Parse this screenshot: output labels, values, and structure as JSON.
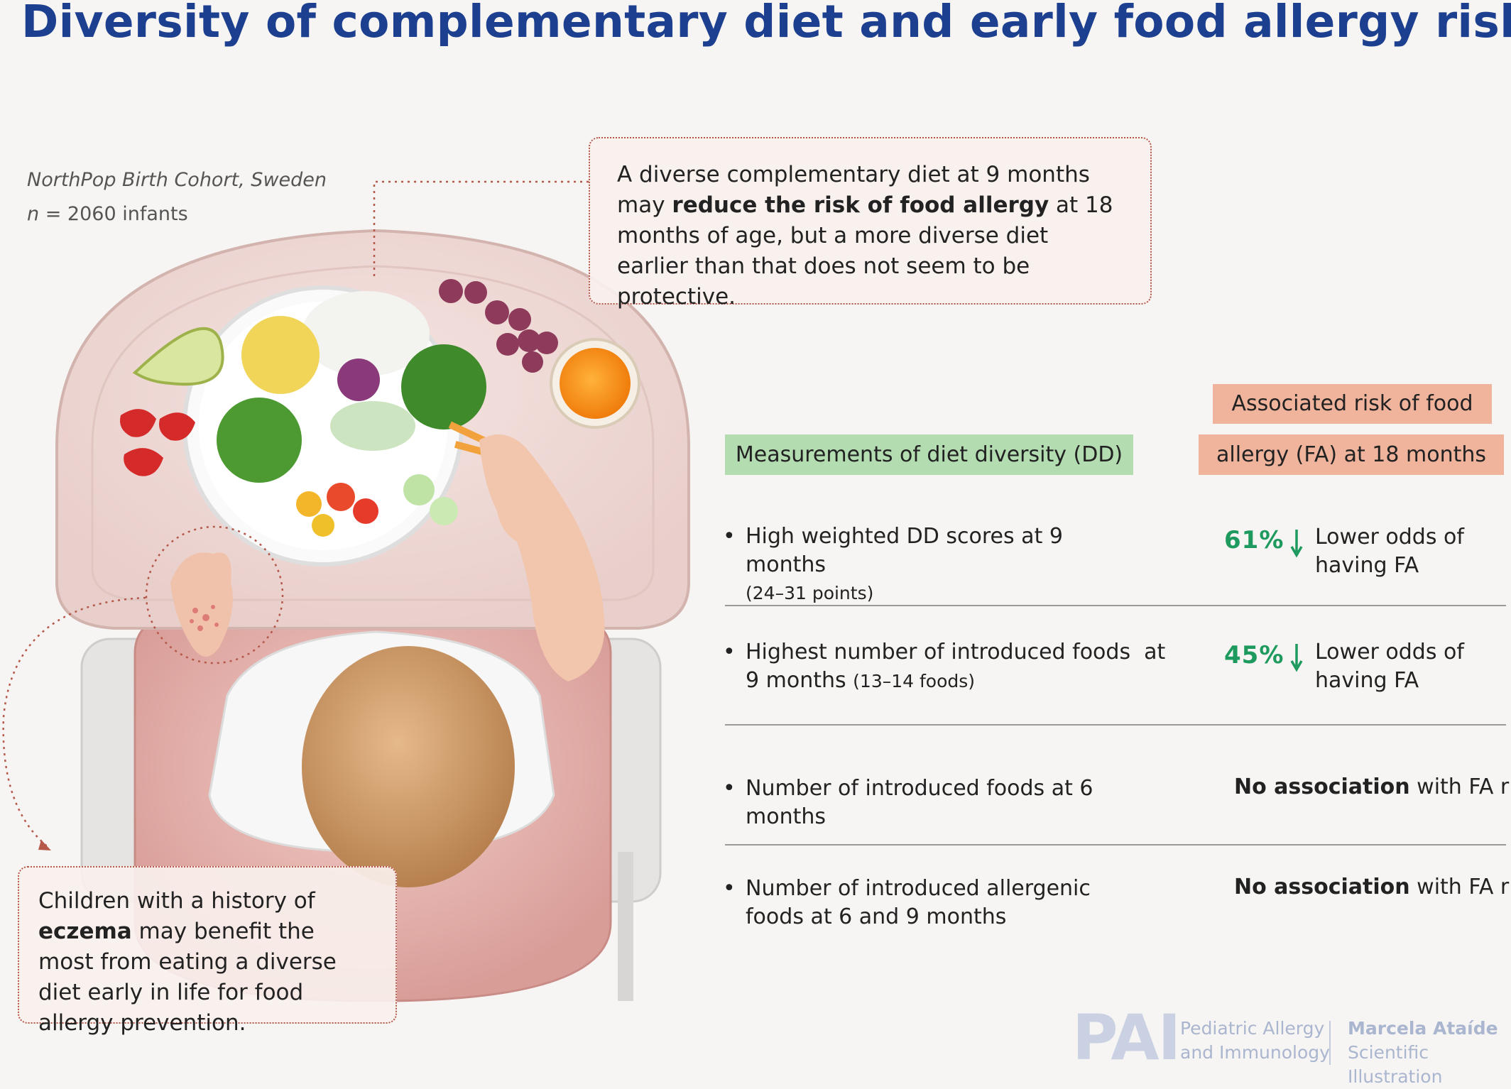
{
  "title": "Diversity of complementary diet and early food allergy risk",
  "cohort": {
    "line1": "NorthPop Birth Cohort, Sweden",
    "n_italic": "n",
    "n_rest": " = 2060 infants"
  },
  "top_box": {
    "part1": "A diverse complementary diet at 9 months may ",
    "bold": "reduce the risk of food allergy",
    "part2": " at 18 months of age, but a more diverse diet earlier than that does not seem to be protective."
  },
  "bottom_box": {
    "part1": "Children with a history of ",
    "bold": "eczema",
    "part2": " may benefit the most from eating a diverse diet early in life for food allergy prevention."
  },
  "headers": {
    "measurements": "Measurements of diet diversity (DD)",
    "risk_line1": "Associated risk of food",
    "risk_line2": "allergy (FA) at 18 months"
  },
  "rows": [
    {
      "bullet": "•",
      "text": "High weighted DD scores at 9 months",
      "small": "(24–31 points)",
      "pct": "61%",
      "odds": "Lower odds of having FA"
    },
    {
      "bullet": "•",
      "text_line1": "Highest number of introduced foods  at",
      "text_line2": "9 months",
      "small": "(13–14 foods)",
      "pct": "45%",
      "odds": "Lower odds of having FA"
    },
    {
      "bullet": "•",
      "text": "Number of introduced foods at 6 months",
      "assoc_bold": "No association",
      "assoc_rest": " with FA risk"
    },
    {
      "bullet": "•",
      "text": "Number of introduced allergenic foods at 6 and 9 months",
      "assoc_bold": "No association",
      "assoc_rest": " with FA risk"
    }
  ],
  "footer": {
    "pai": "PAI",
    "journal_line1": "Pediatric Allergy",
    "journal_line2": "and Immunology",
    "illustrator_line1": "Marcela Ataíde",
    "illustrator_line2": "Scientific Illustration"
  },
  "colors": {
    "title": "#1c3f8f",
    "green_header": "#b3dcb1",
    "orange_header": "#f0b49d",
    "percent": "#1e9a5e",
    "dotted_border": "#b5584a"
  }
}
